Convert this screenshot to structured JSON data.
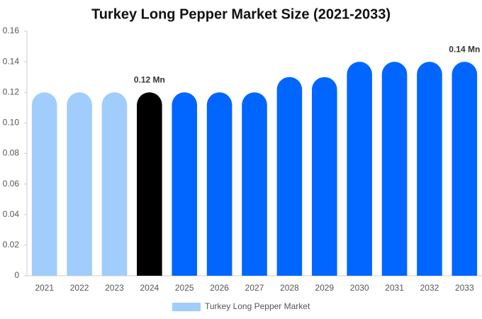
{
  "chart_data": {
    "type": "bar",
    "title": "Turkey Long Pepper Market Size (2021-2033)",
    "categories": [
      "2021",
      "2022",
      "2023",
      "2024",
      "2025",
      "2026",
      "2027",
      "2028",
      "2029",
      "2030",
      "2031",
      "2032",
      "2033"
    ],
    "series": [
      {
        "name": "Turkey Long Pepper Market",
        "color": "#a0cdfb",
        "values": [
          0.12,
          0.12,
          0.12,
          0.12,
          0.12,
          0.12,
          0.12,
          0.13,
          0.13,
          0.14,
          0.14,
          0.14,
          0.14
        ],
        "colors": [
          "#a0cdfb",
          "#a0cdfb",
          "#a0cdfb",
          "#000000",
          "#0066ff",
          "#0066ff",
          "#0066ff",
          "#0066ff",
          "#0066ff",
          "#0066ff",
          "#0066ff",
          "#0066ff",
          "#0066ff"
        ],
        "value_labels": [
          null,
          null,
          null,
          "0.12 Mn",
          null,
          null,
          null,
          null,
          null,
          null,
          null,
          null,
          "0.14 Mn"
        ]
      }
    ],
    "ylim": [
      0,
      0.16
    ],
    "yticks": [
      0,
      0.02,
      0.04,
      0.06,
      0.08,
      {
        "value": 0.1,
        "label": "0.10"
      },
      0.12,
      0.14,
      0.16
    ],
    "grid": false,
    "legend": "bottom"
  }
}
